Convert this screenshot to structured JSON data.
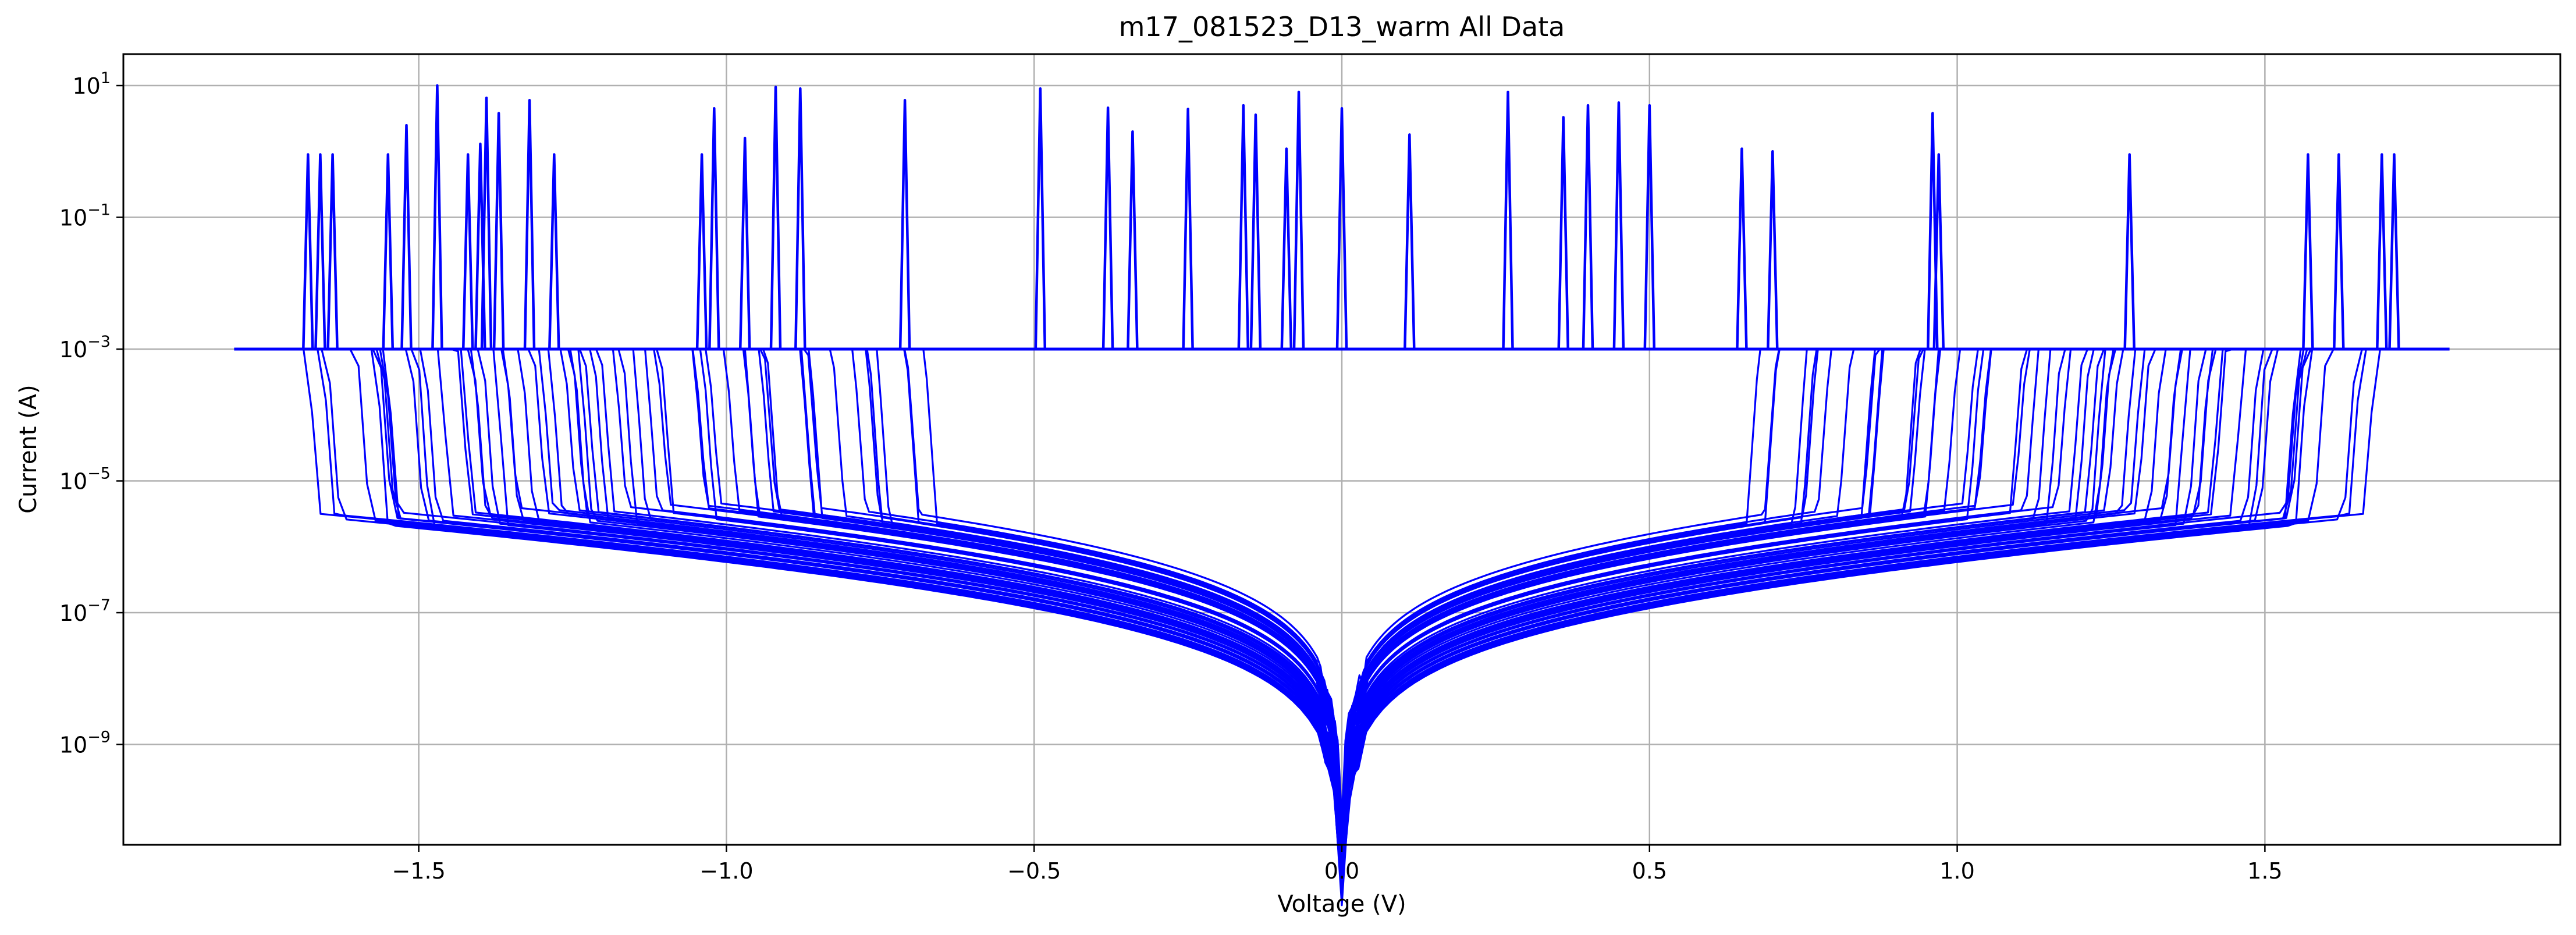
{
  "chart_data": {
    "type": "line",
    "title": "m17_081523_D13_warm All Data",
    "xlabel": "Voltage (V)",
    "ylabel": "Current (A)",
    "xlim": [
      -1.98,
      1.98
    ],
    "ylim": [
      3e-11,
      30
    ],
    "y_scale": "log",
    "grid": true,
    "legend": "none",
    "line_color": "#0000ff",
    "x_ticks": [
      {
        "value": -1.5,
        "label": "−1.5"
      },
      {
        "value": -1.0,
        "label": "−1.0"
      },
      {
        "value": -0.5,
        "label": "−0.5"
      },
      {
        "value": 0.0,
        "label": "0.0"
      },
      {
        "value": 0.5,
        "label": "0.5"
      },
      {
        "value": 1.0,
        "label": "1.0"
      },
      {
        "value": 1.5,
        "label": "1.5"
      }
    ],
    "y_ticks": [
      {
        "value": 10,
        "base": "10",
        "exp": "1"
      },
      {
        "value": 0.1,
        "base": "10",
        "exp": "−1"
      },
      {
        "value": 0.001,
        "base": "10",
        "exp": "−3"
      },
      {
        "value": 1e-05,
        "base": "10",
        "exp": "−5"
      },
      {
        "value": 1e-07,
        "base": "10",
        "exp": "−7"
      },
      {
        "value": 1e-09,
        "base": "10",
        "exp": "−9"
      }
    ],
    "sweep_envelope": {
      "compliance_current": 0.001,
      "min_sweep_limit": 0.72,
      "max_sweep_limit": 1.8,
      "current_near_zero": 1e-10,
      "outer_current_at_1_6V": 4e-05,
      "inner_current_at_0_6V": 3e-07
    },
    "spikes": [
      {
        "x": -1.68,
        "y": 0.9
      },
      {
        "x": -1.66,
        "y": 0.9
      },
      {
        "x": -1.64,
        "y": 0.9
      },
      {
        "x": -1.55,
        "y": 0.9
      },
      {
        "x": -1.52,
        "y": 2.5
      },
      {
        "x": -1.47,
        "y": 10
      },
      {
        "x": -1.42,
        "y": 0.9
      },
      {
        "x": -1.4,
        "y": 1.3
      },
      {
        "x": -1.39,
        "y": 6.5
      },
      {
        "x": -1.37,
        "y": 3.8
      },
      {
        "x": -1.32,
        "y": 6.0
      },
      {
        "x": -1.28,
        "y": 0.9
      },
      {
        "x": -1.04,
        "y": 0.9
      },
      {
        "x": -1.02,
        "y": 4.5
      },
      {
        "x": -0.97,
        "y": 1.6
      },
      {
        "x": -0.92,
        "y": 9.5
      },
      {
        "x": -0.88,
        "y": 9.0
      },
      {
        "x": -0.71,
        "y": 6.0
      },
      {
        "x": -0.49,
        "y": 9.0
      },
      {
        "x": -0.38,
        "y": 4.6
      },
      {
        "x": -0.34,
        "y": 2.0
      },
      {
        "x": -0.25,
        "y": 4.4
      },
      {
        "x": -0.16,
        "y": 5.0
      },
      {
        "x": -0.14,
        "y": 3.6
      },
      {
        "x": -0.09,
        "y": 1.1
      },
      {
        "x": -0.07,
        "y": 8.0
      },
      {
        "x": 0.0,
        "y": 4.5
      },
      {
        "x": 0.11,
        "y": 1.8
      },
      {
        "x": 0.27,
        "y": 8.0
      },
      {
        "x": 0.36,
        "y": 3.3
      },
      {
        "x": 0.4,
        "y": 5.0
      },
      {
        "x": 0.45,
        "y": 5.5
      },
      {
        "x": 0.5,
        "y": 5.0
      },
      {
        "x": 0.65,
        "y": 1.1
      },
      {
        "x": 0.7,
        "y": 1.0
      },
      {
        "x": 0.96,
        "y": 3.8
      },
      {
        "x": 0.97,
        "y": 0.9
      },
      {
        "x": 1.28,
        "y": 0.9
      },
      {
        "x": 1.57,
        "y": 0.9
      },
      {
        "x": 1.62,
        "y": 0.9
      },
      {
        "x": 1.69,
        "y": 0.9
      },
      {
        "x": 1.71,
        "y": 0.9
      }
    ]
  }
}
